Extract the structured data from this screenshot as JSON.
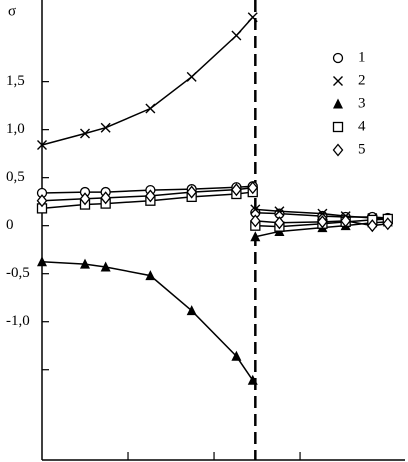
{
  "chart_data": {
    "type": "line",
    "ylabel": "σ",
    "x": [
      0,
      0.5,
      0.74,
      1.26,
      1.74,
      2.26,
      2.45,
      null,
      2.48,
      2.76,
      3.26,
      3.53,
      3.84,
      4.02
    ],
    "series": [
      {
        "name": "1",
        "marker": "circle",
        "color": "#000000",
        "values": [
          0.34,
          0.35,
          0.35,
          0.37,
          0.38,
          0.4,
          0.41,
          null,
          0.135,
          0.125,
          0.1,
          0.09,
          0.09,
          0.08
        ]
      },
      {
        "name": "2",
        "marker": "cross",
        "color": "#000000",
        "values": [
          0.84,
          0.96,
          1.02,
          1.22,
          1.55,
          1.98,
          2.17,
          null,
          0.17,
          0.15,
          0.125,
          0.1,
          0.08,
          0.07
        ]
      },
      {
        "name": "3",
        "marker": "triangle",
        "color": "#000000",
        "values": [
          -0.375,
          -0.4,
          -0.43,
          -0.52,
          -0.885,
          -1.36,
          -1.61,
          null,
          -0.115,
          -0.06,
          -0.02,
          0,
          0.03,
          0.04
        ]
      },
      {
        "name": "4",
        "marker": "square",
        "color": "#000000",
        "values": [
          0.18,
          0.22,
          0.23,
          0.26,
          0.3,
          0.33,
          0.35,
          null,
          0,
          -0.01,
          0.02,
          0.04,
          0.06,
          0.07
        ]
      },
      {
        "name": "5",
        "marker": "diamond",
        "color": "#000000",
        "values": [
          0.26,
          0.28,
          0.29,
          0.31,
          0.35,
          0.375,
          0.395,
          null,
          0.05,
          0.03,
          0.04,
          0.05,
          0,
          0.02
        ]
      }
    ],
    "vline": 2.48,
    "xlim": [
      0,
      4.22
    ],
    "xticks": [
      {
        "value": 1,
        "label": null
      },
      {
        "value": 2,
        "label": null
      },
      {
        "value": 3,
        "label": null
      }
    ],
    "ylim": [
      -2.44,
      2.35
    ],
    "yticks": [
      {
        "value": 1.5,
        "label": "1,5"
      },
      {
        "value": 1,
        "label": "1,0"
      },
      {
        "value": 0.5,
        "label": "0,5"
      },
      0,
      {
        "value": -0.5,
        "label": "-0,5"
      },
      {
        "value": -1,
        "label": "-1,0"
      },
      {
        "value": -1.5,
        "label": null
      }
    ],
    "legend": "top-right",
    "grid": false
  }
}
